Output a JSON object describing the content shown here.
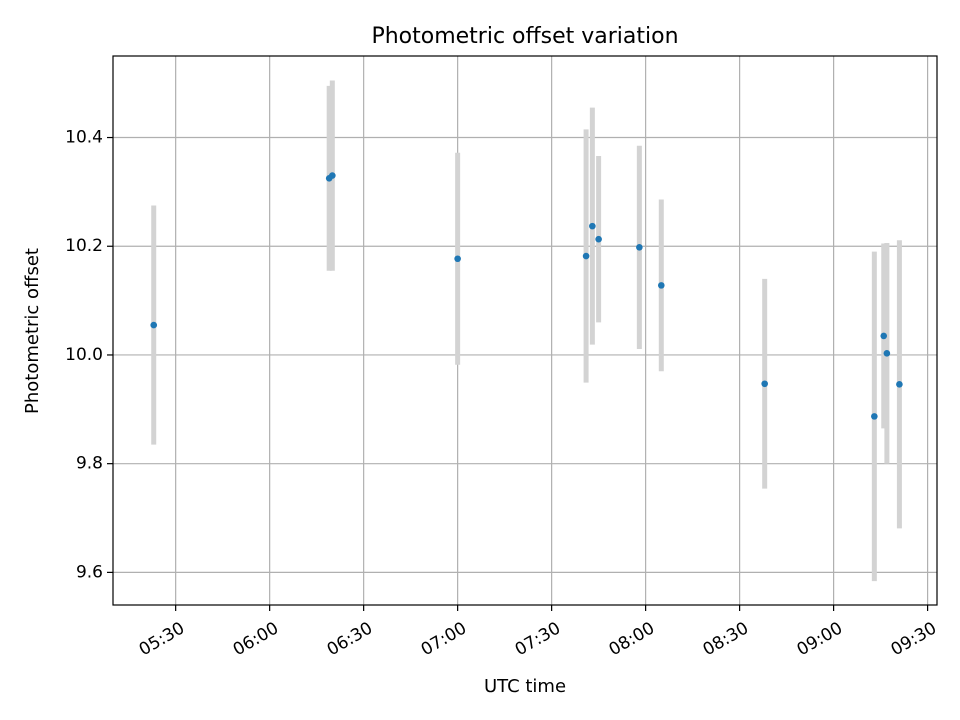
{
  "chart_data": {
    "type": "scatter",
    "title": "Photometric offset variation",
    "xlabel": "UTC time",
    "ylabel": "Photometric offset",
    "grid": true,
    "x_axis": {
      "unit": "minutes-of-day",
      "range": [
        "05:10",
        "09:33"
      ],
      "ticks": [
        {
          "value": "05:30",
          "label": "05:30"
        },
        {
          "value": "06:00",
          "label": "06:00"
        },
        {
          "value": "06:30",
          "label": "06:30"
        },
        {
          "value": "07:00",
          "label": "07:00"
        },
        {
          "value": "07:30",
          "label": "07:30"
        },
        {
          "value": "08:00",
          "label": "08:00"
        },
        {
          "value": "08:30",
          "label": "08:30"
        },
        {
          "value": "09:00",
          "label": "09:00"
        },
        {
          "value": "09:30",
          "label": "09:30"
        }
      ]
    },
    "y_axis": {
      "range": [
        9.54,
        10.55
      ],
      "ticks": [
        {
          "value": 9.6,
          "label": "9.6"
        },
        {
          "value": 9.8,
          "label": "9.8"
        },
        {
          "value": 10.0,
          "label": "10.0"
        },
        {
          "value": 10.2,
          "label": "10.2"
        },
        {
          "value": 10.4,
          "label": "10.4"
        }
      ]
    },
    "colors": {
      "point": "#1f77b4",
      "errorbar": "#d3d3d3",
      "grid": "#b0b0b0"
    },
    "series": [
      {
        "points": [
          {
            "x": "05:23",
            "y": 10.055,
            "yerr": 0.22
          },
          {
            "x": "06:19",
            "y": 10.325,
            "yerr": 0.17
          },
          {
            "x": "06:20",
            "y": 10.33,
            "yerr": 0.175
          },
          {
            "x": "07:00",
            "y": 10.177,
            "yerr": 0.195
          },
          {
            "x": "07:41",
            "y": 10.182,
            "yerr": 0.233
          },
          {
            "x": "07:43",
            "y": 10.237,
            "yerr": 0.218
          },
          {
            "x": "07:45",
            "y": 10.213,
            "yerr": 0.153
          },
          {
            "x": "07:58",
            "y": 10.198,
            "yerr": 0.187
          },
          {
            "x": "08:05",
            "y": 10.128,
            "yerr": 0.158
          },
          {
            "x": "08:38",
            "y": 9.947,
            "yerr": 0.193
          },
          {
            "x": "09:13",
            "y": 9.887,
            "yerr": 0.303
          },
          {
            "x": "09:16",
            "y": 10.035,
            "yerr": 0.17
          },
          {
            "x": "09:17",
            "y": 10.003,
            "yerr": 0.203
          },
          {
            "x": "09:21",
            "y": 9.946,
            "yerr": 0.265
          }
        ]
      }
    ]
  }
}
